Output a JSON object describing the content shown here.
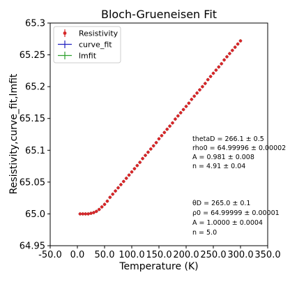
{
  "chart_data": {
    "type": "scatter",
    "title": "Bloch-Grueneisen Fit",
    "xlabel": "Temperature (K)",
    "ylabel": "Resistivity,curve_fit,lmfit",
    "xlim": [
      -50,
      350
    ],
    "ylim": [
      64.95,
      65.3
    ],
    "x_ticks": [
      "-50.0",
      "0.0",
      "50.0",
      "100.0",
      "150.0",
      "200.0",
      "250.0",
      "300.0",
      "350.0"
    ],
    "y_ticks": [
      "64.95",
      "65.0",
      "65.05",
      "65.1",
      "65.15",
      "65.2",
      "65.25",
      "65.3"
    ],
    "grid": false,
    "legend": {
      "placement": "top-left",
      "entries": [
        {
          "label": "Resistivity",
          "color": "#d62728",
          "marker": "dot-errorbar"
        },
        {
          "label": "curve_fit",
          "color": "#1f1fbf",
          "marker": "plus"
        },
        {
          "label": "lmfit",
          "color": "#2ca02c",
          "marker": "plus"
        }
      ]
    },
    "series": [
      {
        "name": "Resistivity",
        "color": "#d62728",
        "x": [
          5,
          10,
          15,
          20,
          25,
          30,
          35,
          40,
          45,
          50,
          55,
          60,
          65,
          70,
          75,
          80,
          85,
          90,
          95,
          100,
          105,
          110,
          115,
          120,
          125,
          130,
          135,
          140,
          145,
          150,
          155,
          160,
          165,
          170,
          175,
          180,
          185,
          190,
          195,
          200,
          205,
          210,
          215,
          220,
          225,
          230,
          235,
          240,
          245,
          250,
          255,
          260,
          265,
          270,
          275,
          280,
          285,
          290,
          295,
          300
        ],
        "y": [
          65.0,
          65.0,
          65.0,
          65.0,
          65.001,
          65.002,
          65.004,
          65.007,
          65.011,
          65.015,
          65.02,
          65.026,
          65.031,
          65.036,
          65.041,
          65.046,
          65.051,
          65.056,
          65.061,
          65.066,
          65.071,
          65.076,
          65.081,
          65.087,
          65.092,
          65.097,
          65.102,
          65.107,
          65.112,
          65.118,
          65.123,
          65.128,
          65.133,
          65.138,
          65.143,
          65.149,
          65.154,
          65.159,
          65.164,
          65.169,
          65.174,
          65.18,
          65.185,
          65.19,
          65.195,
          65.2,
          65.205,
          65.211,
          65.216,
          65.221,
          65.226,
          65.231,
          65.236,
          65.242,
          65.247,
          65.252,
          65.257,
          65.262,
          65.267,
          65.272
        ]
      }
    ],
    "annotations": {
      "curve_fit_params": [
        "thetaD = 266.1 ± 0.5",
        "rho0 = 64.99996 ± 0.00002",
        "A = 0.981 ± 0.008",
        "n = 4.91 ± 0.04"
      ],
      "lmfit_params": [
        "θD = 265.0 ± 0.1",
        "ρ0 = 64.99999 ± 0.00001",
        "A = 1.0000 ± 0.0004",
        "n = 5.0"
      ]
    }
  }
}
